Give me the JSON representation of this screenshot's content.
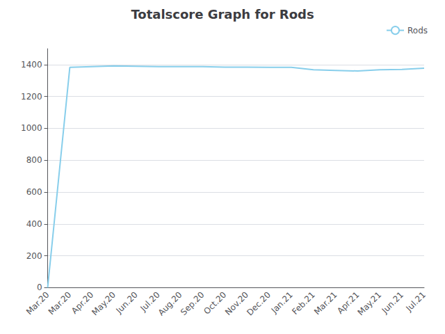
{
  "chart_data": {
    "type": "line",
    "title": "Totalscore Graph for Rods",
    "categories": [
      "Mar.20",
      "Mar.20",
      "Apr.20",
      "May.20",
      "Jun.20",
      "Jul.20",
      "Aug.20",
      "Sep.20",
      "Oct.20",
      "Nov.20",
      "Dec.20",
      "Jan.21",
      "Feb.21",
      "Mar.21",
      "Apr.21",
      "May.21",
      "Jun.21",
      "Jul.21"
    ],
    "series": [
      {
        "name": "Rods",
        "color": "#87CEEB",
        "values": [
          0,
          1383,
          1388,
          1392,
          1390,
          1388,
          1387,
          1387,
          1384,
          1384,
          1383,
          1383,
          1368,
          1364,
          1360,
          1368,
          1370,
          1378
        ]
      }
    ],
    "ylim": [
      0,
      1500
    ],
    "yticks": [
      0,
      200,
      400,
      600,
      800,
      1000,
      1200,
      1400
    ],
    "grid": true,
    "legend": "upper right"
  }
}
